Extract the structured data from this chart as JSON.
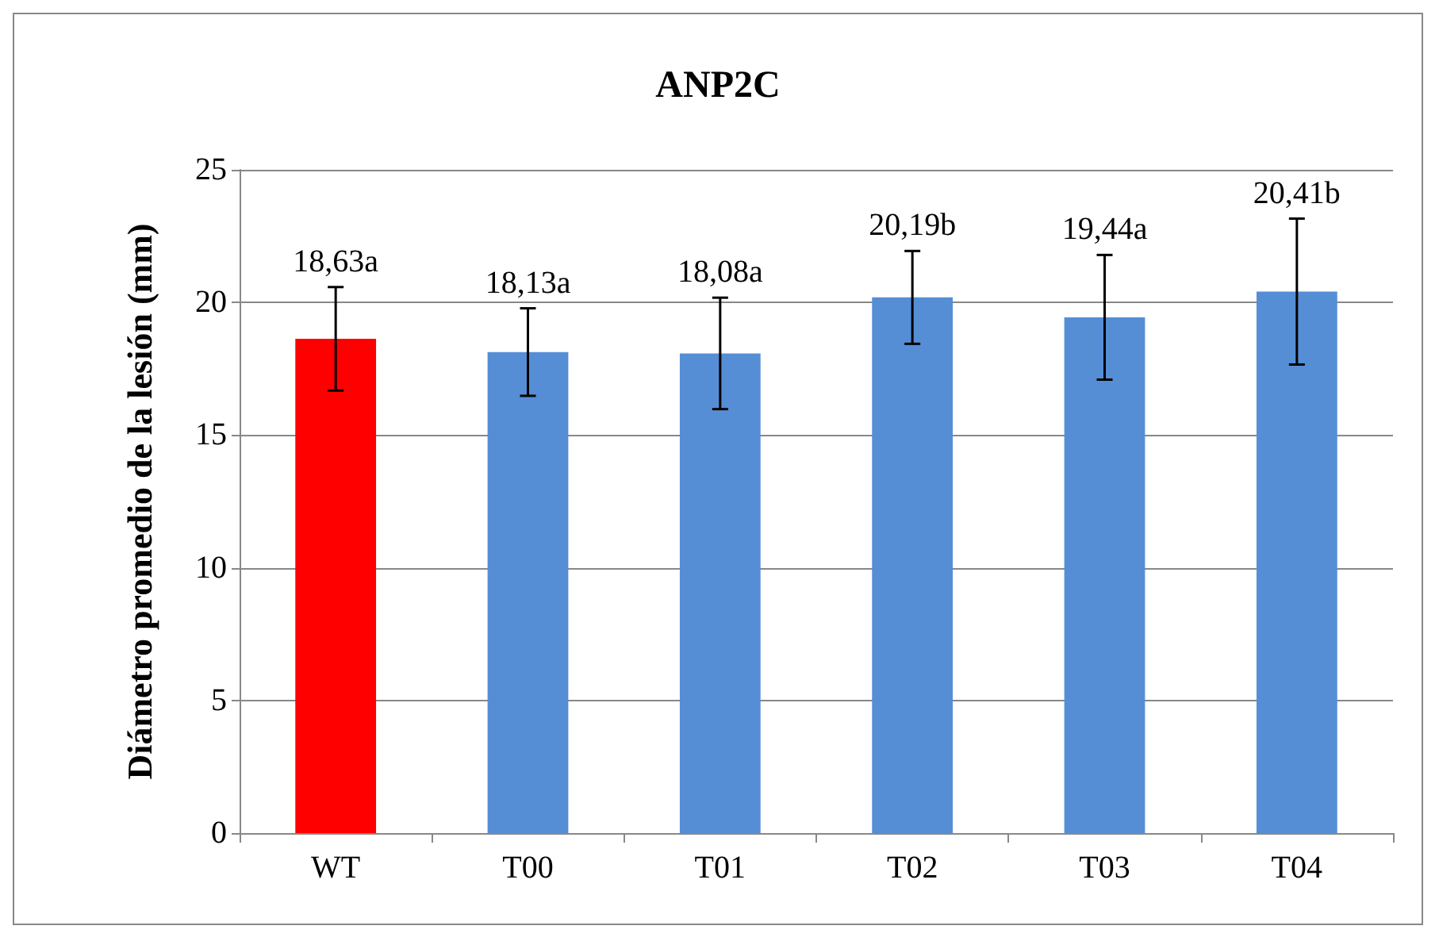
{
  "chart_data": {
    "type": "bar",
    "title": "ANP2C",
    "ylabel": "Diámetro promedio de la lesión (mm)",
    "categories": [
      "WT",
      "T00",
      "T01",
      "T02",
      "T03",
      "T04"
    ],
    "values": [
      18.63,
      18.13,
      18.08,
      20.19,
      19.44,
      20.41
    ],
    "colors": [
      "#ff0000",
      "#558ed5",
      "#558ed5",
      "#558ed5",
      "#558ed5",
      "#558ed5"
    ],
    "errors": [
      1.95,
      1.65,
      2.1,
      1.75,
      2.35,
      2.75
    ],
    "value_labels": [
      "18,63a",
      "18,13a",
      "18,08a",
      "20,19b",
      "19,44a",
      "20,41b"
    ],
    "ylim": [
      0,
      25
    ],
    "yticks": [
      0,
      5,
      10,
      15,
      20,
      25
    ],
    "grid": "y"
  }
}
